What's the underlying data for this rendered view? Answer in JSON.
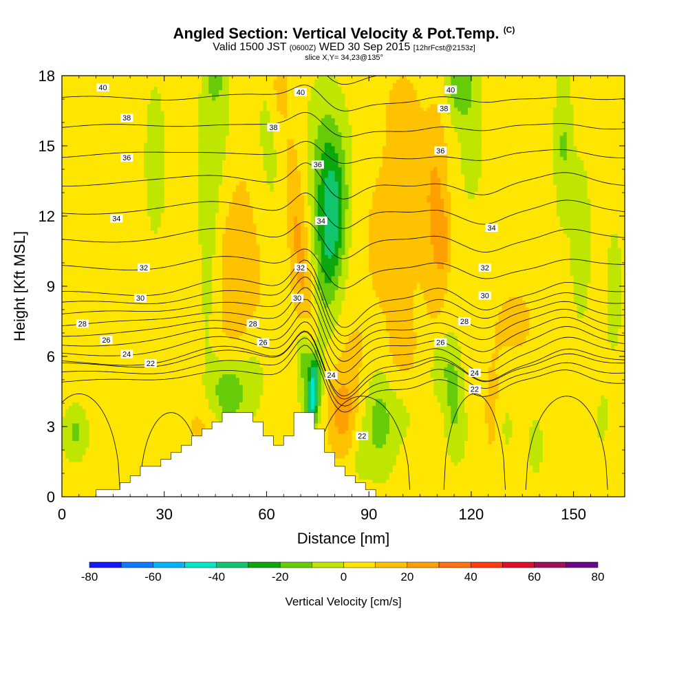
{
  "title": {
    "main": "Angled Section: Vertical Velocity & Pot.Temp.",
    "unit": "(C)",
    "valid_prefix": "Valid 1500 JST",
    "valid_zulu": "(0600Z)",
    "valid_date": "WED 30 Sep 2015",
    "forecast": "[12hrFcst@2153z]",
    "slice": "slice X,Y= 34,23@135°"
  },
  "chart_data": {
    "type": "heatmap",
    "xlabel": "Distance [nm]",
    "ylabel": "Height [Kft MSL]",
    "xlim": [
      0,
      165
    ],
    "ylim": [
      0,
      18
    ],
    "x_ticks": [
      0,
      30,
      60,
      90,
      120,
      150
    ],
    "y_ticks": [
      0,
      3,
      6,
      9,
      12,
      15,
      18
    ],
    "colorbar": {
      "label": "Vertical Velocity [cm/s]",
      "ticks": [
        -80,
        -60,
        -40,
        -20,
        0,
        20,
        40,
        60,
        80
      ],
      "levels": [
        -80,
        -70,
        -60,
        -50,
        -40,
        -30,
        -20,
        -10,
        0,
        10,
        20,
        30,
        40,
        50,
        60,
        70,
        80
      ],
      "colors": [
        "#1616ff",
        "#0d79ff",
        "#00b2ff",
        "#00e6c8",
        "#12c46e",
        "#0aa80a",
        "#66cc0a",
        "#bfe600",
        "#ffe600",
        "#ffc200",
        "#ffa000",
        "#ff7010",
        "#ff3c10",
        "#e0102a",
        "#a0105a",
        "#6a0a8a"
      ]
    },
    "isentropes_C": [
      22,
      24,
      26,
      28,
      30,
      32,
      34,
      36,
      38,
      40
    ],
    "isentrope_labels": [
      {
        "text": "40",
        "x": 12,
        "y": 17.5
      },
      {
        "text": "40",
        "x": 70,
        "y": 17.3
      },
      {
        "text": "40",
        "x": 114,
        "y": 17.4
      },
      {
        "text": "38",
        "x": 19,
        "y": 16.2
      },
      {
        "text": "38",
        "x": 62,
        "y": 15.8
      },
      {
        "text": "38",
        "x": 112,
        "y": 16.6
      },
      {
        "text": "36",
        "x": 19,
        "y": 14.5
      },
      {
        "text": "36",
        "x": 75,
        "y": 14.2
      },
      {
        "text": "36",
        "x": 111,
        "y": 14.8
      },
      {
        "text": "34",
        "x": 16,
        "y": 11.9
      },
      {
        "text": "34",
        "x": 76,
        "y": 11.8
      },
      {
        "text": "34",
        "x": 126,
        "y": 11.5
      },
      {
        "text": "32",
        "x": 24,
        "y": 9.8
      },
      {
        "text": "32",
        "x": 70,
        "y": 9.8
      },
      {
        "text": "32",
        "x": 124,
        "y": 9.8
      },
      {
        "text": "30",
        "x": 23,
        "y": 8.5
      },
      {
        "text": "30",
        "x": 69,
        "y": 8.5
      },
      {
        "text": "30",
        "x": 124,
        "y": 8.6
      },
      {
        "text": "28",
        "x": 6,
        "y": 7.4
      },
      {
        "text": "28",
        "x": 56,
        "y": 7.4
      },
      {
        "text": "28",
        "x": 118,
        "y": 7.5
      },
      {
        "text": "26",
        "x": 13,
        "y": 6.7
      },
      {
        "text": "26",
        "x": 59,
        "y": 6.6
      },
      {
        "text": "26",
        "x": 111,
        "y": 6.6
      },
      {
        "text": "24",
        "x": 19,
        "y": 6.1
      },
      {
        "text": "24",
        "x": 79,
        "y": 5.2
      },
      {
        "text": "24",
        "x": 121,
        "y": 5.3
      },
      {
        "text": "22",
        "x": 26,
        "y": 5.7
      },
      {
        "text": "22",
        "x": 121,
        "y": 4.6
      },
      {
        "text": "22",
        "x": 88,
        "y": 2.6
      }
    ],
    "terrain": [
      [
        10,
        0
      ],
      [
        10,
        0.3
      ],
      [
        17,
        0.3
      ],
      [
        17,
        0.6
      ],
      [
        20,
        0.6
      ],
      [
        20,
        0.9
      ],
      [
        23,
        0.9
      ],
      [
        23,
        1.3
      ],
      [
        29,
        1.3
      ],
      [
        29,
        1.6
      ],
      [
        32,
        1.6
      ],
      [
        32,
        1.9
      ],
      [
        35,
        1.9
      ],
      [
        35,
        2.2
      ],
      [
        38,
        2.2
      ],
      [
        38,
        2.6
      ],
      [
        41,
        2.6
      ],
      [
        41,
        2.9
      ],
      [
        44,
        2.9
      ],
      [
        44,
        3.2
      ],
      [
        47,
        3.2
      ],
      [
        47,
        3.6
      ],
      [
        56,
        3.6
      ],
      [
        56,
        3.2
      ],
      [
        59,
        3.2
      ],
      [
        59,
        2.6
      ],
      [
        62,
        2.6
      ],
      [
        62,
        2.2
      ],
      [
        65,
        2.2
      ],
      [
        65,
        2.6
      ],
      [
        68,
        2.6
      ],
      [
        68,
        3.6
      ],
      [
        74,
        3.6
      ],
      [
        74,
        2.9
      ],
      [
        77,
        2.9
      ],
      [
        77,
        1.9
      ],
      [
        80,
        1.9
      ],
      [
        80,
        1.3
      ],
      [
        83,
        1.3
      ],
      [
        83,
        0.9
      ],
      [
        86,
        0.9
      ],
      [
        86,
        0.6
      ],
      [
        89,
        0.6
      ],
      [
        89,
        0.3
      ],
      [
        92,
        0.3
      ],
      [
        92,
        0
      ]
    ]
  }
}
